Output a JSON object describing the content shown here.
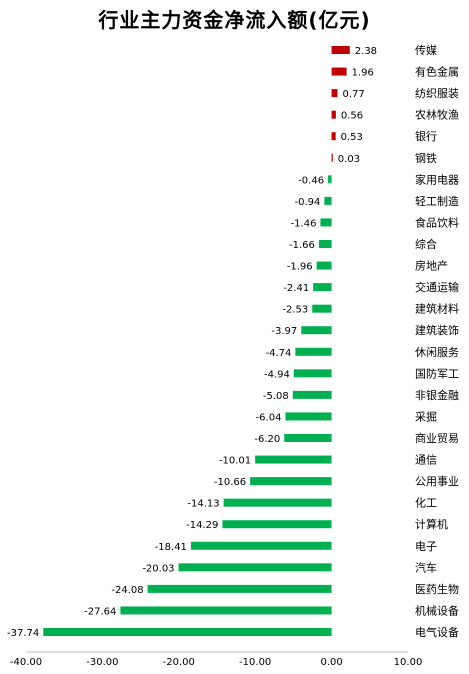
{
  "chart_data": {
    "type": "bar",
    "orientation": "horizontal",
    "title": "行业主力资金净流入额(亿元)",
    "categories": [
      "传媒",
      "有色金属",
      "纺织服装",
      "农林牧渔",
      "银行",
      "钢铁",
      "家用电器",
      "轻工制造",
      "食品饮料",
      "综合",
      "房地产",
      "交通运输",
      "建筑材料",
      "建筑装饰",
      "休闲服务",
      "国防军工",
      "非银金融",
      "采掘",
      "商业贸易",
      "通信",
      "公用事业",
      "化工",
      "计算机",
      "电子",
      "汽车",
      "医药生物",
      "机械设备",
      "电气设备"
    ],
    "values": [
      2.38,
      1.96,
      0.77,
      0.56,
      0.53,
      0.03,
      -0.46,
      -0.94,
      -1.46,
      -1.66,
      -1.96,
      -2.41,
      -2.53,
      -3.97,
      -4.74,
      -4.94,
      -5.08,
      -6.04,
      -6.2,
      -10.01,
      -10.66,
      -14.13,
      -14.29,
      -18.41,
      -20.03,
      -24.08,
      -27.64,
      -37.74
    ],
    "value_labels": [
      "2.38",
      "1.96",
      "0.77",
      "0.56",
      "0.53",
      "0.03",
      "-0.46",
      "-0.94",
      "-1.46",
      "-1.66",
      "-1.96",
      "-2.41",
      "-2.53",
      "-3.97",
      "-4.74",
      "-4.94",
      "-5.08",
      "-6.04",
      "-6.20",
      "-10.01",
      "-10.66",
      "-14.13",
      "-14.29",
      "-18.41",
      "-20.03",
      "-24.08",
      "-27.64",
      "-37.74"
    ],
    "xlim": [
      -40,
      10
    ],
    "xticks": [
      "-40.00",
      "-30.00",
      "-20.00",
      "-10.00",
      "0.00",
      "10.00"
    ],
    "xtick_values": [
      -40,
      -30,
      -20,
      -10,
      0,
      10
    ],
    "grid": false,
    "colors": {
      "positive": "#C00000",
      "negative": "#00B050"
    }
  }
}
